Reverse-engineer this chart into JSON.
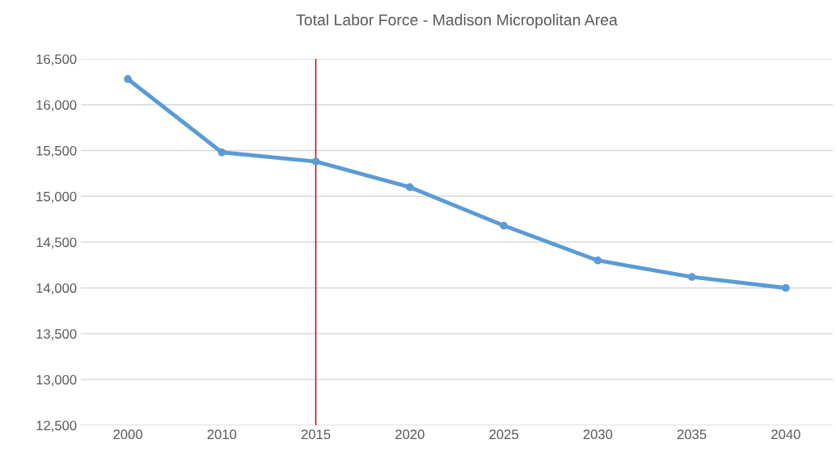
{
  "chart_data": {
    "type": "line",
    "title": "Total Labor Force - Madison Micropolitan Area",
    "categories": [
      "2000",
      "2010",
      "2015",
      "2020",
      "2025",
      "2030",
      "2035",
      "2040"
    ],
    "series": [
      {
        "color": "#5b9bd5",
        "values": [
          16280,
          15480,
          15380,
          15100,
          14680,
          14300,
          14120,
          14000
        ]
      }
    ],
    "ylim": [
      12500,
      16500
    ],
    "yticks": [
      {
        "value": 12500,
        "label": "12,500"
      },
      {
        "value": 13000,
        "label": "13,000"
      },
      {
        "value": 13500,
        "label": "13,500"
      },
      {
        "value": 14000,
        "label": "14,000"
      },
      {
        "value": 14500,
        "label": "14,500"
      },
      {
        "value": 15000,
        "label": "15,000"
      },
      {
        "value": 15500,
        "label": "15,500"
      },
      {
        "value": 16000,
        "label": "16,000"
      },
      {
        "value": 16500,
        "label": "16,500"
      }
    ],
    "ref_lines": [
      {
        "axis": "x",
        "value": "2015",
        "color": "#c00000"
      }
    ],
    "grid": "y",
    "marker": "circle",
    "line_style": "solid"
  }
}
